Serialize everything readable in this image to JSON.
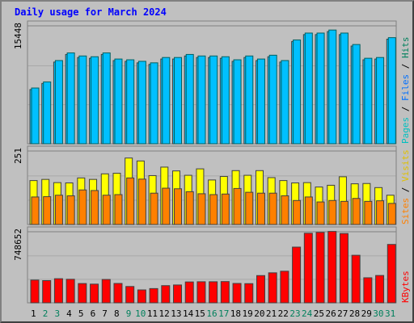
{
  "chart_data": {
    "type": "bar",
    "title": "Daily usage for March 2024",
    "categories": [
      "1",
      "2",
      "3",
      "4",
      "5",
      "6",
      "7",
      "8",
      "9",
      "10",
      "11",
      "12",
      "13",
      "14",
      "15",
      "16",
      "17",
      "18",
      "19",
      "20",
      "21",
      "22",
      "23",
      "24",
      "25",
      "26",
      "27",
      "28",
      "29",
      "30",
      "31"
    ],
    "weekend_days": [
      "2",
      "3",
      "9",
      "10",
      "16",
      "17",
      "23",
      "24",
      "30",
      "31"
    ],
    "panels": [
      {
        "name": "hits_panel",
        "axis_max_label": "15448",
        "ylim": [
          0,
          15448
        ],
        "legend": [
          "Pages",
          "Files",
          "Hits"
        ],
        "series": [
          {
            "name": "Files",
            "color": "#00c0ff",
            "values": [
              7100,
              7900,
              10700,
              11700,
              11300,
              11200,
              11700,
              10900,
              10800,
              10600,
              10400,
              11100,
              11100,
              11500,
              11300,
              11300,
              11200,
              10800,
              11300,
              10900,
              11400,
              10700,
              13400,
              14300,
              14300,
              14700,
              14300,
              12800,
              11000,
              11100,
              13700
            ]
          },
          {
            "name": "Hits",
            "color": "#00c0ff",
            "values": [
              7300,
              8100,
              10900,
              11900,
              11500,
              11400,
              11900,
              11100,
              11000,
              10800,
              10600,
              11300,
              11300,
              11700,
              11500,
              11500,
              11400,
              11000,
              11500,
              11100,
              11600,
              10900,
              13600,
              14500,
              14500,
              14900,
              14500,
              13000,
              11200,
              11300,
              13900
            ]
          }
        ]
      },
      {
        "name": "visits_panel",
        "axis_max_label": "251",
        "ylim": [
          0,
          251
        ],
        "legend": [
          "Sites",
          "Visits"
        ],
        "series": [
          {
            "name": "Visits",
            "color": "#ffff00",
            "values": [
              150,
              154,
              143,
              142,
              159,
              154,
              173,
              175,
              227,
              217,
              167,
              196,
              183,
              168,
              190,
              152,
              164,
              184,
              168,
              184,
              160,
              150,
              142,
              143,
              128,
              134,
              163,
              139,
              140,
              126,
              100
            ]
          },
          {
            "name": "Sites",
            "color": "#ff8000",
            "values": [
              94,
              95,
              100,
              98,
              118,
              116,
              100,
              102,
              159,
              155,
              107,
              124,
              122,
              112,
              105,
              102,
              104,
              123,
              110,
              107,
              107,
              98,
              82,
              94,
              77,
              82,
              79,
              89,
              79,
              81,
              72
            ]
          }
        ]
      },
      {
        "name": "kbytes_panel",
        "axis_max_label": "748652",
        "ylim": [
          0,
          748652
        ],
        "legend": [
          "KBytes"
        ],
        "series": [
          {
            "name": "KBytes",
            "color": "#ff0000",
            "values": [
              240000,
              234000,
              254000,
              248000,
              203000,
              197000,
              246000,
              204000,
              172000,
              136000,
              150000,
              181000,
              188000,
              220000,
              222000,
              222000,
              224000,
              204000,
              202000,
              287000,
              316000,
              333000,
              587000,
              733000,
              742000,
              752000,
              730000,
              501000,
              264000,
              288000,
              615000
            ]
          }
        ]
      }
    ],
    "colors": {
      "background": "#c0c0c0",
      "plot_bg": "#c0c0c0",
      "title": "#0000ff",
      "weekday_label": "#000000",
      "weekend_label": "#00805c",
      "gridline": "#808080"
    }
  }
}
